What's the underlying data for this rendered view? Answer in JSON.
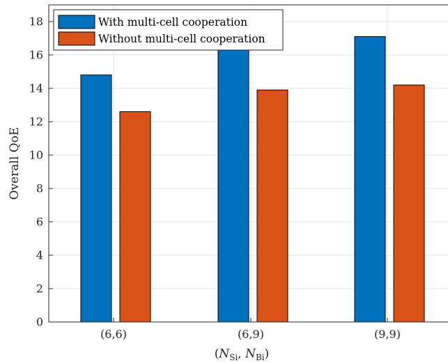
{
  "chart_data": {
    "type": "bar",
    "categories": [
      "(6,6)",
      "(6,9)",
      "(9,9)"
    ],
    "series": [
      {
        "name": "With multi-cell cooperation",
        "values": [
          14.8,
          16.5,
          17.1
        ],
        "color": "#0072BD"
      },
      {
        "name": "Without multi-cell cooperation",
        "values": [
          12.6,
          13.9,
          14.2
        ],
        "color": "#D95319"
      }
    ],
    "xlabel_parts": {
      "open": "(",
      "n1": "N",
      "s1": "Si",
      "comma": ", ",
      "n2": "N",
      "s2": "Bi",
      "close": ")"
    },
    "ylabel": "Overall QoE",
    "ylim": [
      0,
      19
    ],
    "yticks": [
      0,
      2,
      4,
      6,
      8,
      10,
      12,
      14,
      16,
      18
    ],
    "grid": true,
    "legend_position": "top-left"
  }
}
